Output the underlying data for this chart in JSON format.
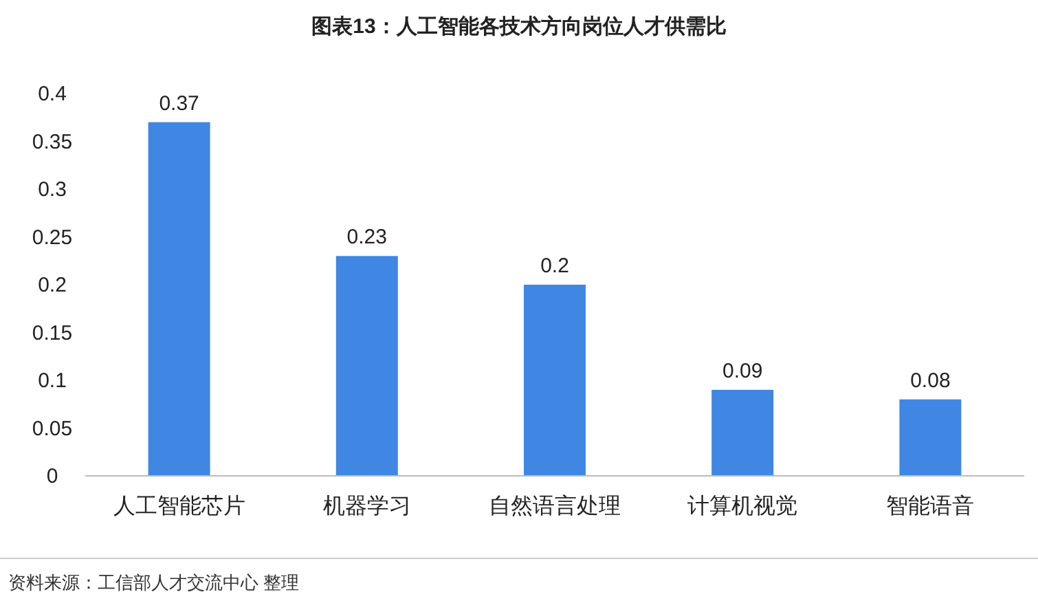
{
  "chart_data": {
    "type": "bar",
    "title": "图表13：人工智能各技术方向岗位人才供需比",
    "categories": [
      "人工智能芯片",
      "机器学习",
      "自然语言处理",
      "计算机视觉",
      "智能语音"
    ],
    "values": [
      0.37,
      0.23,
      0.2,
      0.09,
      0.08
    ],
    "color": "#3f87e3",
    "ylim": [
      0,
      0.4
    ],
    "yticks": [
      0,
      0.05,
      0.1,
      0.15,
      0.2,
      0.25,
      0.3,
      0.35,
      0.4
    ],
    "data_labels": true,
    "grid": false,
    "annotations": [
      "资料来源：工信部人才交流中心 整理"
    ]
  }
}
